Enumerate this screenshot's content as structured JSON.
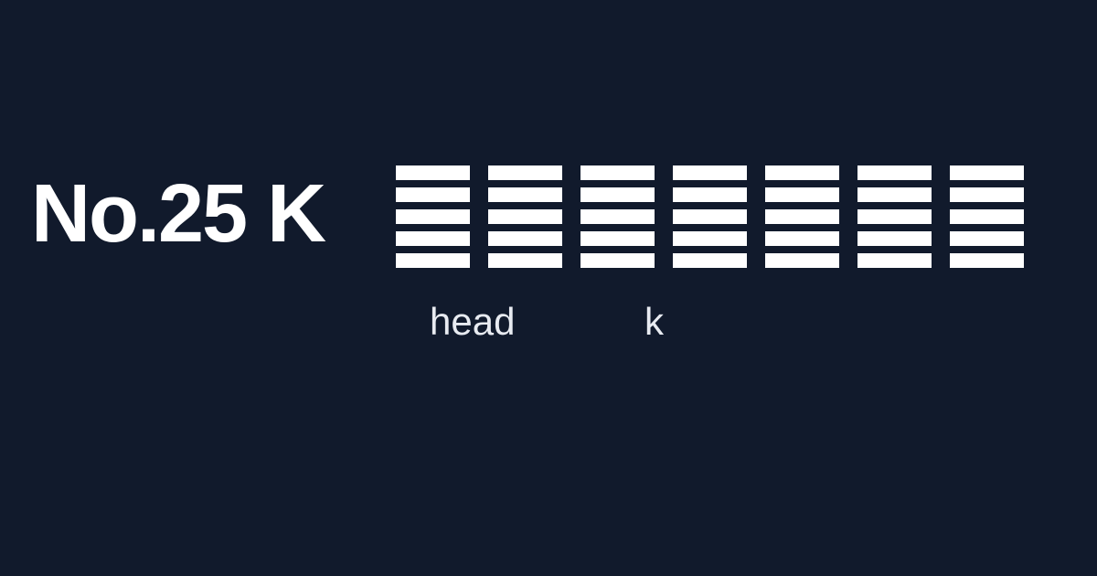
{
  "title": "No.25 K",
  "glyph_icon": "hexagram-qian-icon",
  "glyph_count": 7,
  "labels": {
    "first": "head",
    "second": "k"
  },
  "colors": {
    "background": "#111a2c",
    "foreground": "#ffffff",
    "caption": "#e8ebf1"
  }
}
